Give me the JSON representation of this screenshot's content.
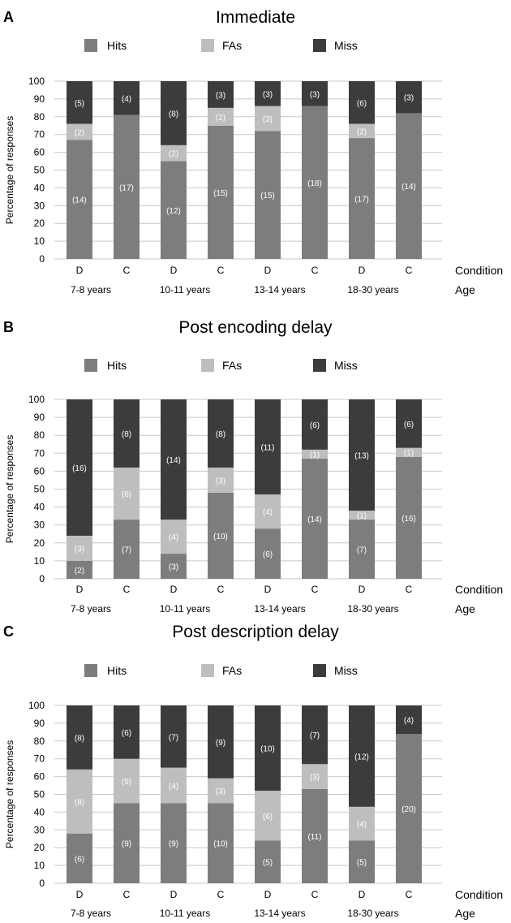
{
  "panel_letters": [
    "A",
    "B",
    "C"
  ],
  "legend_labels": [
    "Hits",
    "FAs",
    "Miss"
  ],
  "row_labels": {
    "condition": "Condition",
    "age": "Age"
  },
  "colors": {
    "hits": "#7d7d7d",
    "fas": "#bebebe",
    "miss": "#3c3c3c",
    "grid": "#c8c8c8",
    "label": "#ffffff"
  },
  "chart_data": [
    {
      "type": "bar",
      "stacked": true,
      "title": "Immediate",
      "ylabel": "Percentage of responses",
      "ylim": [
        0,
        100
      ],
      "yticks": [
        0,
        10,
        20,
        30,
        40,
        50,
        60,
        70,
        80,
        90,
        100
      ],
      "grid": true,
      "legend": "top",
      "categories": [
        "D",
        "C",
        "D",
        "C",
        "D",
        "C",
        "D",
        "C"
      ],
      "groups": [
        "7-8 years",
        "10-11 years",
        "13-14 years",
        "18-30 years"
      ],
      "series": [
        {
          "name": "Hits",
          "values": [
            67,
            81,
            55,
            75,
            72,
            86,
            68,
            82
          ],
          "labels": [
            "(14)",
            "(17)",
            "(12)",
            "(15)",
            "(15)",
            "(18)",
            "(17)",
            "(14)"
          ]
        },
        {
          "name": "FAs",
          "values": [
            9,
            0,
            9,
            10,
            14,
            0,
            8,
            0
          ],
          "labels": [
            "(2)",
            "",
            "(2)",
            "(2)",
            "(3)",
            "",
            "(2)",
            ""
          ]
        },
        {
          "name": "Miss",
          "values": [
            24,
            19,
            36,
            15,
            14,
            14,
            24,
            18
          ],
          "labels": [
            "(5)",
            "(4)",
            "(8)",
            "(3)",
            "(3)",
            "(3)",
            "(6)",
            "(3)"
          ]
        }
      ]
    },
    {
      "type": "bar",
      "stacked": true,
      "title": "Post encoding delay",
      "ylabel": "Percentage of responses",
      "ylim": [
        0,
        100
      ],
      "yticks": [
        0,
        10,
        20,
        30,
        40,
        50,
        60,
        70,
        80,
        90,
        100
      ],
      "grid": true,
      "legend": "top",
      "categories": [
        "D",
        "C",
        "D",
        "C",
        "D",
        "C",
        "D",
        "C"
      ],
      "groups": [
        "7-8 years",
        "10-11 years",
        "13-14 years",
        "18-30 years"
      ],
      "series": [
        {
          "name": "Hits",
          "values": [
            10,
            33,
            14,
            48,
            28,
            67,
            33,
            68
          ],
          "labels": [
            "(2)",
            "(7)",
            "(3)",
            "(10)",
            "(6)",
            "(14)",
            "(7)",
            "(16)"
          ]
        },
        {
          "name": "FAs",
          "values": [
            14,
            29,
            19,
            14,
            19,
            5,
            5,
            5
          ],
          "labels": [
            "(3)",
            "(6)",
            "(4)",
            "(3)",
            "(4)",
            "(1)",
            "(1)",
            "(1)"
          ]
        },
        {
          "name": "Miss",
          "values": [
            76,
            38,
            67,
            38,
            53,
            28,
            62,
            27
          ],
          "labels": [
            "(16)",
            "(8)",
            "(14)",
            "(8)",
            "(11)",
            "(6)",
            "(13)",
            "(6)"
          ]
        }
      ]
    },
    {
      "type": "bar",
      "stacked": true,
      "title": "Post description delay",
      "ylabel": "Percentage of responses",
      "ylim": [
        0,
        100
      ],
      "yticks": [
        0,
        10,
        20,
        30,
        40,
        50,
        60,
        70,
        80,
        90,
        100
      ],
      "grid": true,
      "legend": "top",
      "categories": [
        "D",
        "C",
        "D",
        "C",
        "D",
        "C",
        "D",
        "C"
      ],
      "groups": [
        "7-8 years",
        "10-11 years",
        "13-14 years",
        "18-30 years"
      ],
      "series": [
        {
          "name": "Hits",
          "values": [
            28,
            45,
            45,
            45,
            24,
            53,
            24,
            84
          ],
          "labels": [
            "(6)",
            "(9)",
            "(9)",
            "(10)",
            "(5)",
            "(11)",
            "(5)",
            "(20)"
          ]
        },
        {
          "name": "FAs",
          "values": [
            36,
            25,
            20,
            14,
            28,
            14,
            19,
            0
          ],
          "labels": [
            "(8)",
            "(5)",
            "(4)",
            "(3)",
            "(6)",
            "(3)",
            "(4)",
            ""
          ]
        },
        {
          "name": "Miss",
          "values": [
            36,
            30,
            35,
            41,
            48,
            33,
            57,
            16
          ],
          "labels": [
            "(8)",
            "(6)",
            "(7)",
            "(9)",
            "(10)",
            "(7)",
            "(12)",
            "(4)"
          ]
        }
      ]
    }
  ]
}
